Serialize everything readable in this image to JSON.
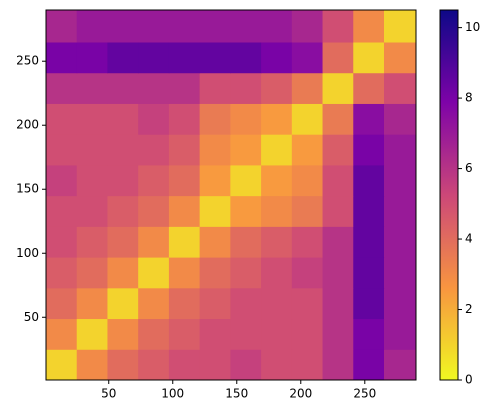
{
  "chart_data": {
    "type": "heatmap",
    "xbins": [
      1,
      25,
      49,
      73,
      97,
      121,
      145,
      169,
      193,
      217,
      241,
      265,
      290
    ],
    "ybins": [
      1,
      25,
      49,
      73,
      97,
      121,
      145,
      169,
      193,
      217,
      241,
      265,
      290
    ],
    "z": [
      [
        1,
        3,
        4,
        4.5,
        5,
        5,
        5.5,
        5,
        5,
        6,
        8,
        6.5
      ],
      [
        3,
        1,
        3,
        4,
        4.5,
        5,
        5,
        5,
        5,
        6,
        8,
        7
      ],
      [
        4,
        3,
        1,
        3,
        4,
        4.5,
        5,
        5,
        5,
        6,
        8.5,
        7
      ],
      [
        4.5,
        4,
        3,
        1,
        3,
        4,
        4.5,
        5,
        5.5,
        6,
        8.5,
        7
      ],
      [
        5,
        4.5,
        4,
        3,
        1,
        3,
        4,
        4.5,
        5,
        6,
        8.5,
        7
      ],
      [
        5,
        5,
        4.5,
        4,
        3,
        1,
        2.5,
        3,
        3.5,
        5,
        8.5,
        7
      ],
      [
        5.5,
        5,
        5,
        4.5,
        4,
        2.5,
        1,
        2.5,
        3,
        5,
        8.5,
        7
      ],
      [
        5,
        5,
        5,
        5,
        4.5,
        3,
        2.5,
        1,
        2.5,
        4.5,
        8,
        7
      ],
      [
        5,
        5,
        5,
        5.5,
        5,
        3.5,
        3,
        2.5,
        1,
        3.5,
        7.5,
        6.5
      ],
      [
        6,
        6,
        6,
        6,
        6,
        5,
        5,
        4.5,
        3.5,
        1,
        4,
        5
      ],
      [
        8,
        8,
        8.5,
        8.5,
        8.5,
        8.5,
        8.5,
        8,
        7.5,
        4,
        1,
        3
      ],
      [
        6.5,
        7,
        7,
        7,
        7,
        7,
        7,
        7,
        6.5,
        5,
        3,
        1
      ]
    ],
    "xlim": [
      1,
      290
    ],
    "ylim": [
      1,
      290
    ],
    "xticks": [
      50,
      100,
      150,
      200,
      250
    ],
    "yticks": [
      50,
      100,
      150,
      200,
      250
    ],
    "colormap": "plasma_r",
    "clim": [
      0,
      10.5
    ],
    "cticks": [
      0,
      2,
      4,
      6,
      8,
      10
    ]
  }
}
